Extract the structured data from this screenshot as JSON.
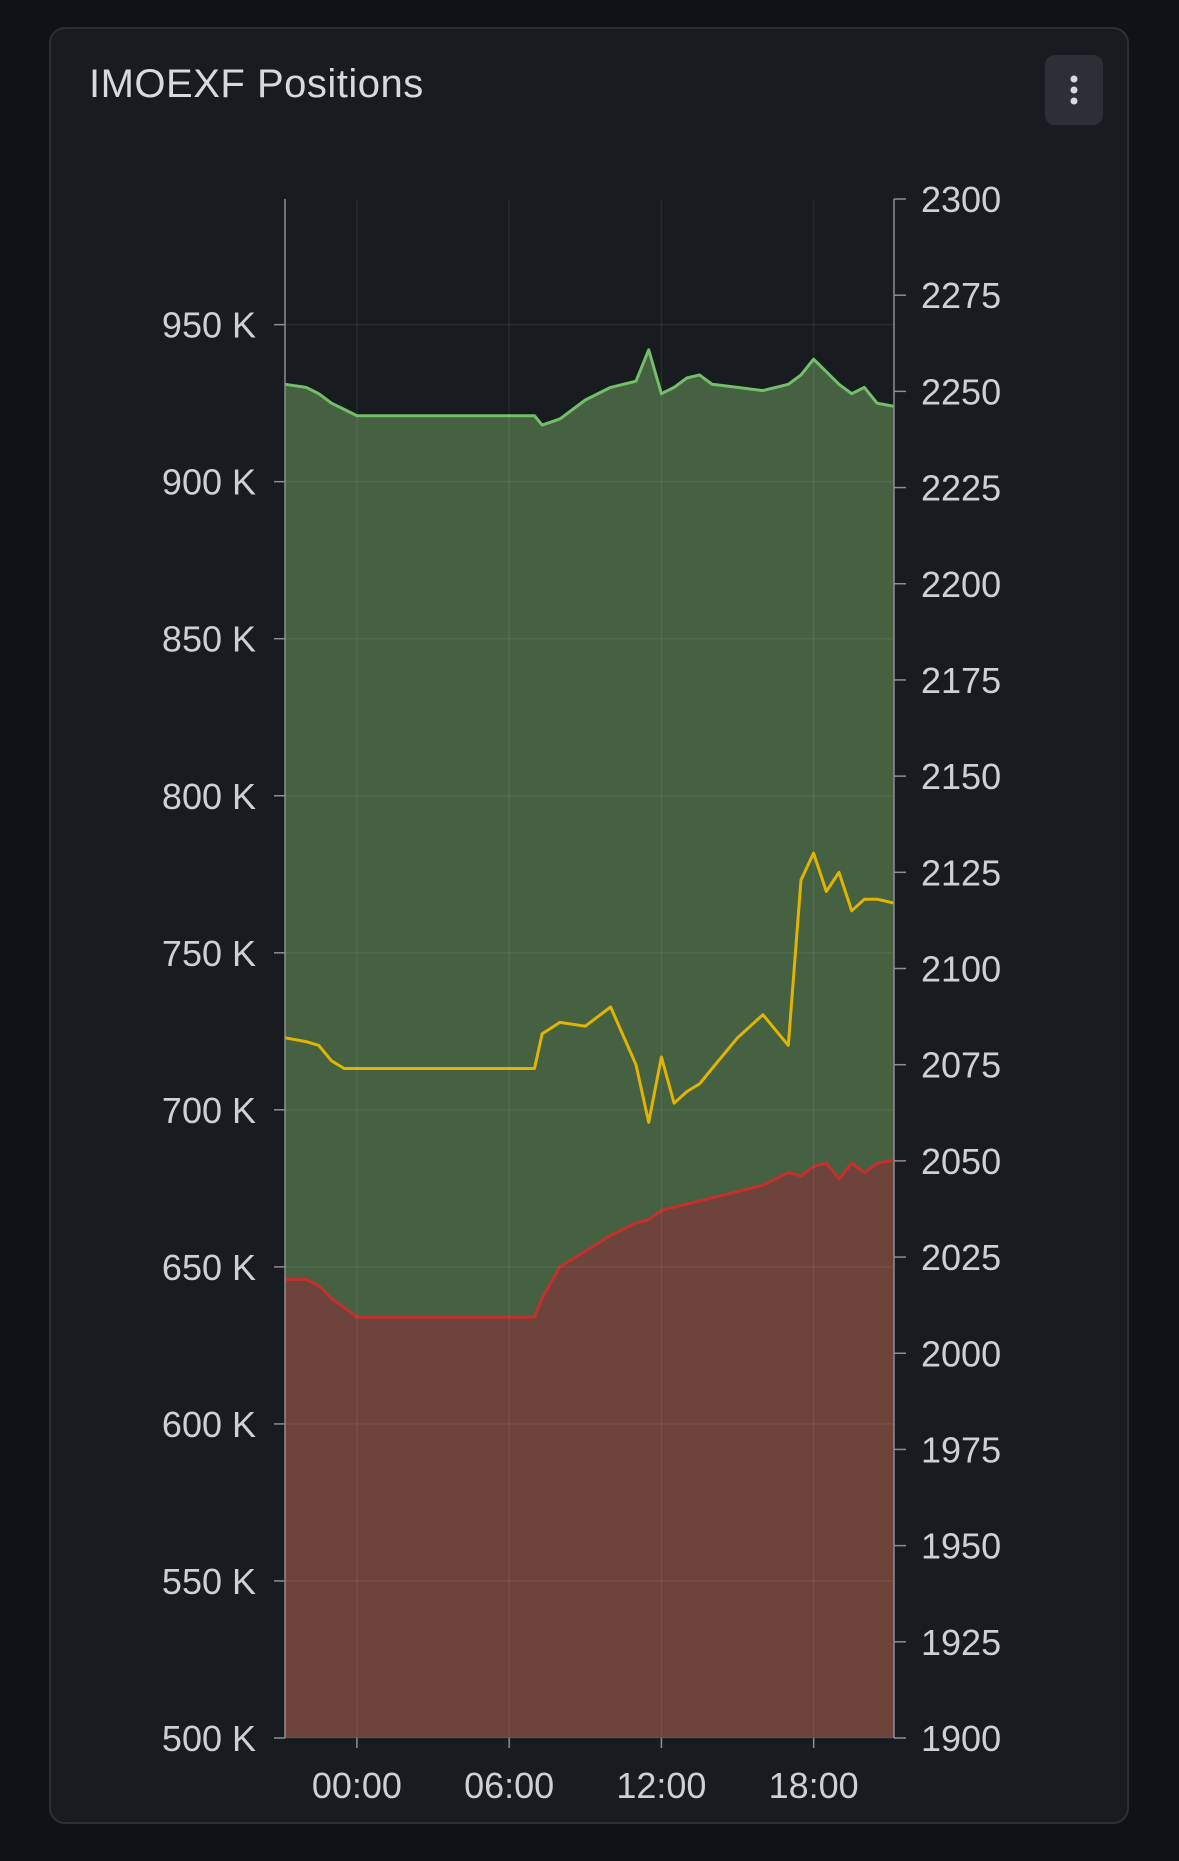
{
  "panel": {
    "title": "IMOEXF Positions",
    "menu_icon": "kebab-menu-icon"
  },
  "chart_data": {
    "type": "area",
    "title": "IMOEXF Positions",
    "grid": true,
    "legend": "none",
    "x_ticks": [
      "00:00",
      "06:00",
      "12:00",
      "18:00"
    ],
    "x_range": [
      "-02:50",
      "21:10"
    ],
    "y_left": {
      "range": [
        500000,
        990000
      ],
      "ticks": [
        500000,
        550000,
        600000,
        650000,
        700000,
        750000,
        800000,
        850000,
        900000,
        950000
      ],
      "tick_labels": [
        "500 K",
        "550 K",
        "600 K",
        "650 K",
        "700 K",
        "750 K",
        "800 K",
        "850 K",
        "900 K",
        "950 K"
      ]
    },
    "y_right": {
      "range": [
        1900,
        2300
      ],
      "ticks": [
        1900,
        1925,
        1950,
        1975,
        2000,
        2025,
        2050,
        2075,
        2100,
        2125,
        2150,
        2175,
        2200,
        2225,
        2250,
        2275,
        2300
      ],
      "tick_labels": [
        "1900",
        "1925",
        "1950",
        "1975",
        "2000",
        "2025",
        "2050",
        "2075",
        "2100",
        "2125",
        "2150",
        "2175",
        "2200",
        "2225",
        "2250",
        "2275",
        "2300"
      ]
    },
    "x_hours": [
      -2.83,
      -2.0,
      -1.5,
      -1.0,
      -0.5,
      0.0,
      7.0,
      7.3,
      8.0,
      9.0,
      10.0,
      11.0,
      11.5,
      12.0,
      12.5,
      13.0,
      13.5,
      14.0,
      15.0,
      16.0,
      17.0,
      17.5,
      18.0,
      18.5,
      19.0,
      19.5,
      20.0,
      20.5,
      21.17
    ],
    "series": [
      {
        "axis": "left",
        "color": "#73bf69",
        "fill": "#456142",
        "values": [
          931000,
          930000,
          928000,
          925000,
          923000,
          921000,
          921000,
          918000,
          920000,
          926000,
          930000,
          932000,
          942000,
          928000,
          930000,
          933000,
          934000,
          931000,
          930000,
          929000,
          931000,
          934000,
          939000,
          935000,
          931000,
          928000,
          930000,
          925000,
          924000
        ]
      },
      {
        "axis": "left",
        "color": "#c4302b",
        "fill": "#6e433b",
        "values": [
          646000,
          646000,
          644000,
          640000,
          637000,
          634000,
          634000,
          640000,
          650000,
          655000,
          660000,
          664000,
          665000,
          668000,
          669000,
          670000,
          671000,
          672000,
          674000,
          676000,
          680000,
          679000,
          682000,
          683000,
          678000,
          683000,
          680000,
          683000,
          684000
        ]
      },
      {
        "axis": "right",
        "color": "#e0b400",
        "values": [
          2082,
          2081,
          2080,
          2076,
          2074,
          2074,
          2074,
          2083,
          2086,
          2085,
          2090,
          2075,
          2060,
          2077,
          2065,
          2068,
          2070,
          2074,
          2082,
          2088,
          2080,
          2123,
          2130,
          2120,
          2125,
          2115,
          2118,
          2118,
          2117
        ]
      }
    ]
  }
}
